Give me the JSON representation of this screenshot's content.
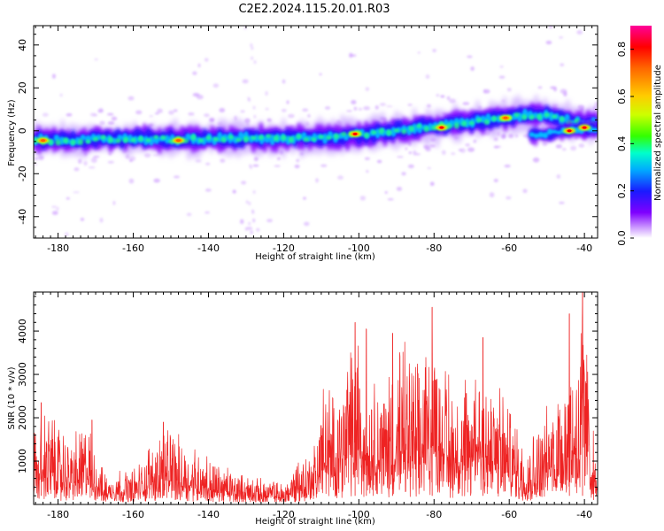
{
  "title": "C2E2.2024.115.20.01.R03",
  "chart_data": [
    {
      "type": "heatmap",
      "xlabel": "Height of straight line (km)",
      "ylabel": "Frequency (Hz)",
      "xlim": [
        -186.5,
        -36.5
      ],
      "ylim": [
        -50,
        49
      ],
      "xticks": [
        -180,
        -160,
        -140,
        -120,
        -100,
        -80,
        -60,
        -40
      ],
      "yticks": [
        -40,
        -20,
        0,
        20,
        40
      ],
      "colorbar": {
        "label": "Normalized spectral amplitude",
        "range": [
          0.0,
          0.9
        ],
        "ticks": [
          0.0,
          0.2,
          0.4,
          0.6,
          0.8
        ],
        "colormap": [
          "#ffffff",
          "#cc99ff",
          "#7f00ff",
          "#1a1aff",
          "#00c8ff",
          "#00ff99",
          "#33ff00",
          "#ccff00",
          "#ffcc00",
          "#ff6600",
          "#ff0000",
          "#ff0099"
        ]
      },
      "ridge": {
        "x": [
          -186,
          -180,
          -170,
          -160,
          -150,
          -140,
          -130,
          -120,
          -110,
          -100,
          -90,
          -80,
          -70,
          -60,
          -50,
          -40,
          -37
        ],
        "y": [
          -4,
          -4.5,
          -4,
          -3.5,
          -4,
          -3.8,
          -3.5,
          -3.5,
          -3,
          -2,
          0,
          2,
          4,
          6.5,
          7.5,
          2.5,
          4
        ]
      },
      "secondary_ridge": {
        "x": [
          -54,
          -50,
          -45,
          -40,
          -37
        ],
        "y": [
          -2,
          -1.5,
          0,
          1,
          1
        ]
      },
      "peaks": [
        {
          "x": -184,
          "y": -4.5,
          "value": 0.7
        },
        {
          "x": -148,
          "y": -4.5,
          "value": 0.7
        },
        {
          "x": -101,
          "y": -1.5,
          "value": 0.75
        },
        {
          "x": -78,
          "y": 1.5,
          "value": 0.8
        },
        {
          "x": -61,
          "y": 6.0,
          "value": 0.6
        },
        {
          "x": -44,
          "y": 0.0,
          "value": 0.85
        },
        {
          "x": -40,
          "y": 1.5,
          "value": 0.8
        }
      ]
    },
    {
      "type": "line",
      "xlabel": "Height of straight line (km)",
      "ylabel": "SNR (10 * v/v)",
      "xlim": [
        -186.5,
        -36.5
      ],
      "ylim": [
        0,
        4900
      ],
      "xticks": [
        -180,
        -160,
        -140,
        -120,
        -100,
        -80,
        -60,
        -40
      ],
      "yticks": [
        1000,
        2000,
        3000,
        4000
      ],
      "series": [
        {
          "name": "SNR",
          "color": "#ee2222",
          "envelope_x": [
            -186,
            -182,
            -178,
            -172,
            -168,
            -160,
            -152,
            -145,
            -140,
            -132,
            -125,
            -120,
            -116,
            -112,
            -110,
            -106,
            -101,
            -98,
            -93,
            -88,
            -84,
            -80,
            -76,
            -72,
            -68,
            -64,
            -60,
            -56,
            -52,
            -48,
            -45,
            -42,
            -40,
            -38,
            -37
          ],
          "envelope_y": [
            1700,
            2300,
            1500,
            1900,
            800,
            800,
            1800,
            1500,
            1100,
            700,
            600,
            500,
            1100,
            1300,
            2800,
            2600,
            4200,
            3300,
            2900,
            3800,
            3200,
            4500,
            3000,
            2800,
            3800,
            2900,
            2400,
            1500,
            1800,
            2800,
            3600,
            4400,
            4900,
            2200,
            900
          ],
          "peaks": [
            {
              "x": -184.5,
              "y": 2350
            },
            {
              "x": -171,
              "y": 1950
            },
            {
              "x": -152,
              "y": 1900
            },
            {
              "x": -101,
              "y": 4200
            },
            {
              "x": -98,
              "y": 4050
            },
            {
              "x": -91,
              "y": 3950
            },
            {
              "x": -80.5,
              "y": 4550
            },
            {
              "x": -67,
              "y": 3850
            },
            {
              "x": -44,
              "y": 4400
            },
            {
              "x": -40.5,
              "y": 4900
            }
          ]
        }
      ]
    }
  ]
}
